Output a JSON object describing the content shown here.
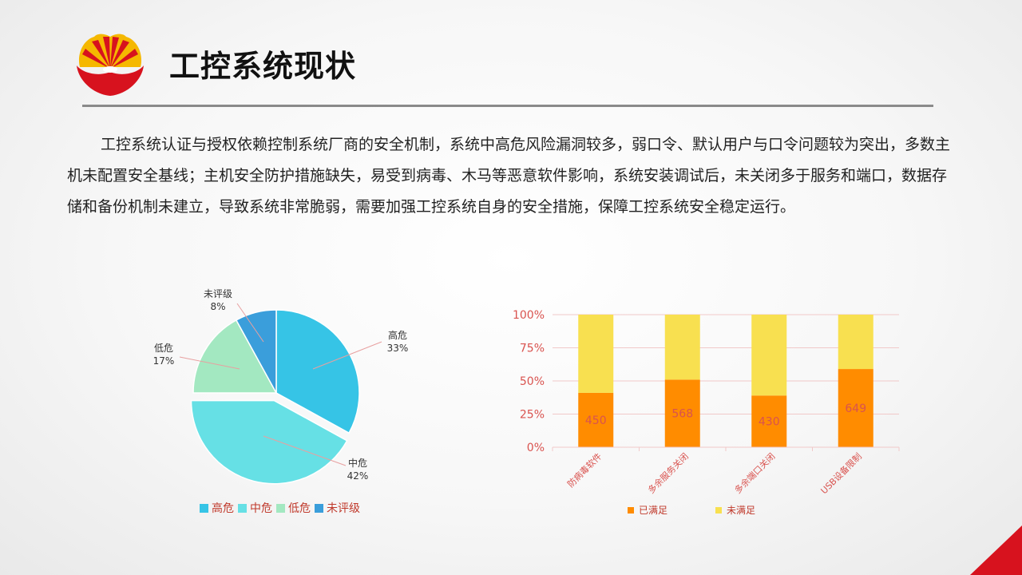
{
  "header": {
    "title": "工控系统现状"
  },
  "body_text": "工控系统认证与授权依赖控制系统厂商的安全机制，系统中高危风险漏洞较多，弱口令、默认用户与口令问题较为突出，多数主机未配置安全基线；主机安全防护措施缺失，易受到病毒、木马等恶意软件影响，系统安装调试后，未关闭多于服务和端口，数据存储和备份机制未建立，导致系统非常脆弱，需要加强工控系统自身的安全措施，保障工控系统安全稳定运行。",
  "colors": {
    "brand_red": "#d7121e",
    "brand_yellow": "#f5b800"
  },
  "chart_data": [
    {
      "type": "pie",
      "slices": [
        {
          "label": "高危",
          "value": 33,
          "display": "33%",
          "color": "#36c4e6",
          "exploded": false
        },
        {
          "label": "中危",
          "value": 42,
          "display": "42%",
          "color": "#66e0e5",
          "exploded": true
        },
        {
          "label": "低危",
          "value": 17,
          "display": "17%",
          "color": "#a3e8c1",
          "exploded": false
        },
        {
          "label": "未评级",
          "value": 8,
          "display": "8%",
          "color": "#3a9edb",
          "exploded": false
        }
      ],
      "legend": [
        "高危",
        "中危",
        "低危",
        "未评级"
      ],
      "legend_position": "bottom"
    },
    {
      "type": "bar",
      "stacked": "percent",
      "categories": [
        "防病毒软件",
        "多余服务关闭",
        "多余端口关闭",
        "USB设备限制"
      ],
      "series": [
        {
          "name": "已满足",
          "values": [
            41,
            51,
            39,
            59
          ],
          "labels": [
            "450",
            "568",
            "430",
            "649"
          ],
          "color": "#ff8c00"
        },
        {
          "name": "未满足",
          "values": [
            59,
            49,
            61,
            41
          ],
          "color": "#f8e050"
        }
      ],
      "yticks": [
        "0%",
        "25%",
        "50%",
        "75%",
        "100%"
      ],
      "ylim": [
        0,
        100
      ],
      "grid": true,
      "legend_position": "bottom"
    }
  ]
}
